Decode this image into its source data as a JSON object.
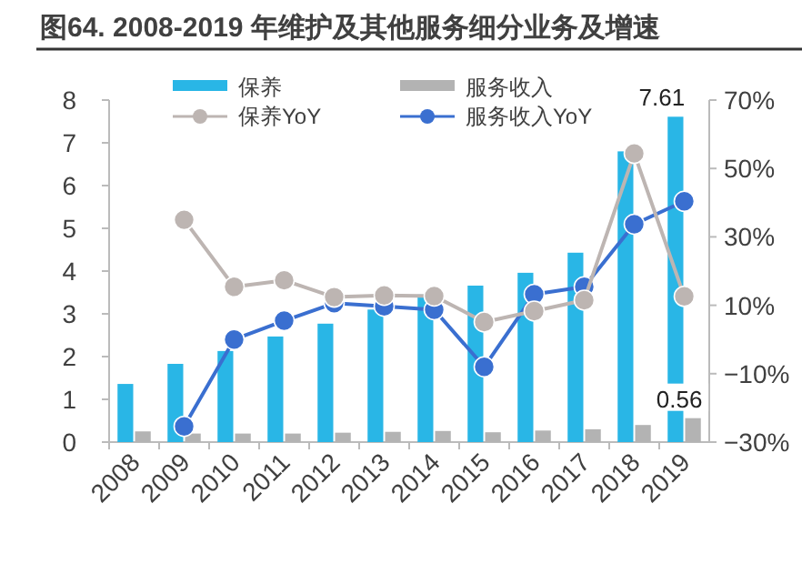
{
  "chart_data": {
    "type": "bar",
    "title": "图64. 2008-2019 年维护及其他服务细分业务及增速",
    "categories": [
      "2008",
      "2009",
      "2010",
      "2011",
      "2012",
      "2013",
      "2014",
      "2015",
      "2016",
      "2017",
      "2018",
      "2019"
    ],
    "series": [
      {
        "name": "保养",
        "color": "#29b6e6",
        "values": [
          1.36,
          1.83,
          2.13,
          2.47,
          2.77,
          3.1,
          3.45,
          3.66,
          3.96,
          4.43,
          6.8,
          7.61
        ],
        "value_labels": [
          null,
          null,
          null,
          null,
          null,
          null,
          null,
          null,
          null,
          null,
          null,
          "7.61"
        ]
      },
      {
        "name": "服务收入",
        "color": "#b3b3b3",
        "values": [
          0.25,
          0.2,
          0.2,
          0.2,
          0.22,
          0.24,
          0.26,
          0.23,
          0.27,
          0.3,
          0.4,
          0.56
        ],
        "value_labels": [
          null,
          null,
          null,
          null,
          null,
          null,
          null,
          null,
          null,
          null,
          null,
          "0.56"
        ]
      },
      {
        "name": "保养YoY",
        "type": "line",
        "axis": "y2",
        "color": "#bdb5b2",
        "values": [
          null,
          35,
          15.4,
          17.3,
          12.4,
          12.9,
          12.7,
          5.1,
          8.3,
          11.5,
          54.4,
          12.6
        ]
      },
      {
        "name": "服务收入YoY",
        "type": "line",
        "axis": "y2",
        "color": "#3a6fd0",
        "values": [
          null,
          -25.4,
          0,
          5.5,
          10.6,
          9.7,
          8.7,
          -8,
          13.2,
          15.4,
          33.7,
          40.4
        ]
      }
    ],
    "ylim": [
      0,
      8
    ],
    "yticks": [
      0,
      1,
      2,
      3,
      4,
      5,
      6,
      7,
      8
    ],
    "y2lim": [
      -30,
      70
    ],
    "y2ticks": [
      {
        "value": -30,
        "label": "−30%"
      },
      {
        "value": -10,
        "label": "−10%"
      },
      {
        "value": 10,
        "label": "10%"
      },
      {
        "value": 30,
        "label": "30%"
      },
      {
        "value": 50,
        "label": "50%"
      },
      {
        "value": 70,
        "label": "70%"
      }
    ],
    "legend": "top",
    "grid": false,
    "marker": "circle"
  }
}
